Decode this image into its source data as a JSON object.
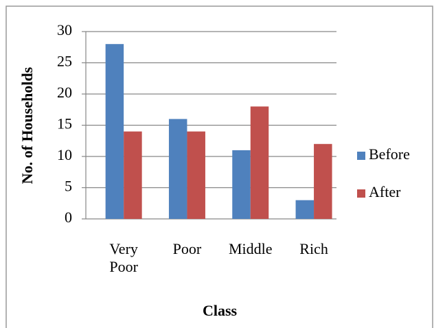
{
  "chart_data": {
    "type": "bar",
    "categories": [
      "Very Poor",
      "Poor",
      "Middle",
      "Rich"
    ],
    "series": [
      {
        "name": "Before",
        "color": "#4f81bd",
        "values": [
          28,
          16,
          11,
          3
        ]
      },
      {
        "name": "After",
        "color": "#c0504d",
        "values": [
          14,
          14,
          18,
          12
        ]
      }
    ],
    "ylim": [
      0,
      30
    ],
    "yticks": [
      0,
      5,
      10,
      15,
      20,
      25,
      30
    ],
    "grid": true,
    "ylabel": "No. of Households",
    "xlabel": "Class",
    "legend": "right"
  }
}
